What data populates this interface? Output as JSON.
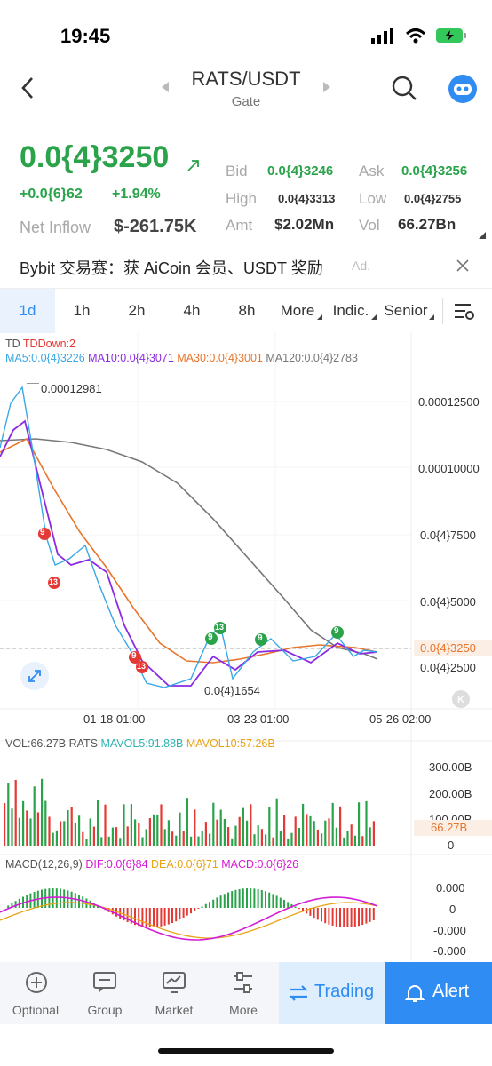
{
  "status": {
    "time": "19:45"
  },
  "header": {
    "pair": "RATS/USDT",
    "exchange": "Gate"
  },
  "quote": {
    "price": "0.0{4}3250",
    "change_abs": "+0.0{6}62",
    "change_pct": "+1.94%",
    "net_inflow_label": "Net Inflow",
    "net_inflow_value": "$-261.75K",
    "bid_label": "Bid",
    "bid_value": "0.0{4}3246",
    "ask_label": "Ask",
    "ask_value": "0.0{4}3256",
    "high_label": "High",
    "high_value": "0.0{4}3313",
    "low_label": "Low",
    "low_value": "0.0{4}2755",
    "amt_label": "Amt",
    "amt_value": "$2.02Mn",
    "vol_label": "Vol",
    "vol_value": "66.27Bn"
  },
  "banner": {
    "text": "Bybit 交易赛：获 AiCoin 会员、USDT 奖励",
    "ad": "Ad."
  },
  "tabs": [
    "1d",
    "1h",
    "2h",
    "4h",
    "8h",
    "More",
    "Indic.",
    "Senior"
  ],
  "main_chart": {
    "legend1_td": "TD",
    "legend1_tddown": "TDDown:2",
    "ma5": "MA5:0.0{4}3226",
    "ma10": "MA10:0.0{4}3071",
    "ma30": "MA30:0.0{4}3001",
    "ma120": "MA120:0.0{4}2783",
    "high_marker": "0.00012981",
    "low_marker": "0.0{4}1654",
    "y_labels": [
      "0.00012500",
      "0.00010000",
      "0.0{4}7500",
      "0.0{4}5000",
      "0.0{4}2500"
    ],
    "current_price_label": "0.0{4}3250",
    "x_labels": [
      "01-18 01:00",
      "03-23 01:00",
      "05-26 02:00"
    ],
    "td_markers": [
      "9",
      "13",
      "9",
      "13",
      "9",
      "13",
      "9",
      "9"
    ]
  },
  "vol_panel": {
    "vol": "VOL:66.27B RATS",
    "mavol5": "MAVOL5:91.88B",
    "mavol10": "MAVOL10:57.26B",
    "y_labels": [
      "300.00B",
      "200.00B",
      "100.00B",
      "0"
    ],
    "current": "66.27B"
  },
  "macd_panel": {
    "name": "MACD(12,26,9)",
    "dif": "DIF:0.0{6}84",
    "dea": "DEA:0.0{6}71",
    "macd": "MACD:0.0{6}26",
    "y_labels": [
      "0.000",
      "0",
      "-0.000",
      "-0.000"
    ]
  },
  "bottom_nav": {
    "optional": "Optional",
    "group": "Group",
    "market": "Market",
    "more": "More",
    "trading": "Trading",
    "alert": "Alert"
  },
  "colors": {
    "green": "#2aa34a",
    "red": "#e53935",
    "blue_btn": "#2f8cf2",
    "trading_bg": "#dfeefd",
    "ma5": "#3aa7e6",
    "ma10": "#8a2be2",
    "ma30": "#e8752c",
    "ma120": "#777777"
  }
}
